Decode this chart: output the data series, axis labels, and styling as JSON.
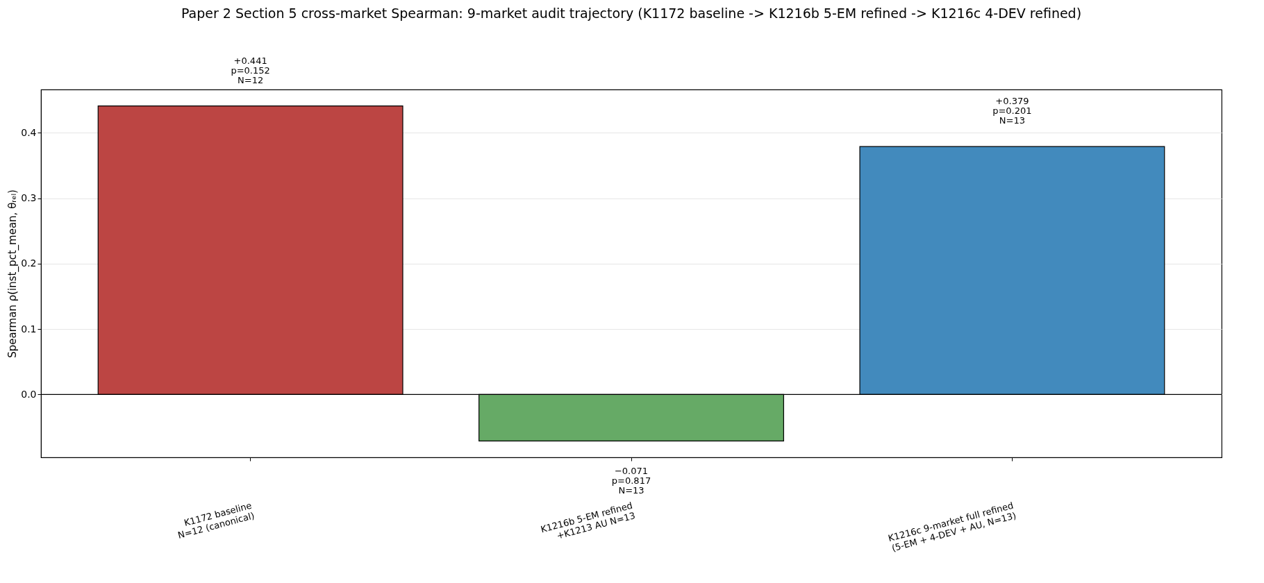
{
  "chart_data": {
    "type": "bar",
    "title": "Paper 2 Section 5 cross-market Spearman: 9-market audit trajectory (K1172 baseline -> K1216b 5-EM refined -> K1216c 4-DEV refined)",
    "ylabel": "Spearman ρ(inst_pct_mean, θᵣₑₗ)",
    "categories": [
      "K1172 baseline\nN=12 (canonical)",
      "K1216b 5-EM refined\n+K1213 AU N=13",
      "K1216c 9-market full refined\n(5-EM + 4-DEV + AU, N=13)"
    ],
    "values": [
      0.441,
      -0.071,
      0.379
    ],
    "colors": [
      "#bc4543",
      "#66aa66",
      "#428abd"
    ],
    "value_labels": [
      "+0.441\np=0.152\nN=12",
      "−0.071\np=0.817\nN=13",
      "+0.379\np=0.201\nN=13"
    ],
    "ylim": [
      -0.096,
      0.466
    ],
    "yticks": [
      {
        "value": 0,
        "label": "0.0"
      },
      0.1,
      0.2,
      0.3,
      0.4
    ],
    "ref_lines": [
      {
        "axis": "y",
        "value": 0,
        "color": "#000000"
      }
    ],
    "grid": "y"
  }
}
